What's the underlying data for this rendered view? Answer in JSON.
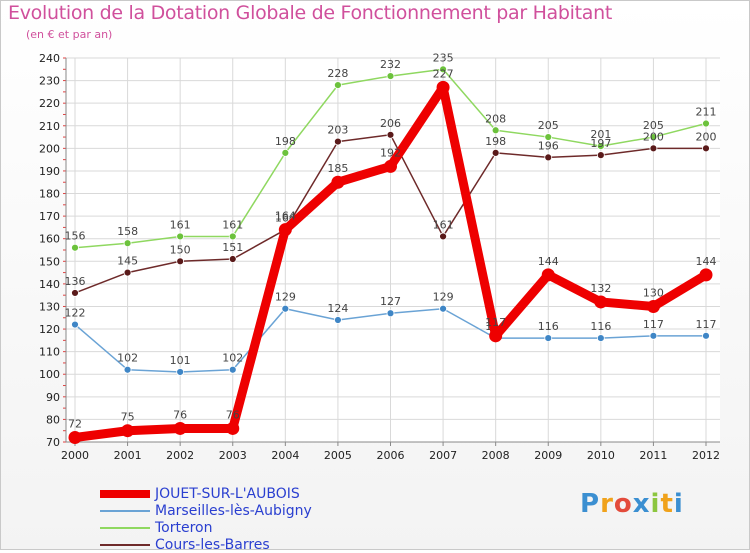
{
  "title": "Evolution de la Dotation Globale de Fonctionnement par Habitant",
  "subtitle": "(en € et par an)",
  "logo": {
    "text": "Proxiti",
    "letters": [
      {
        "ch": "P",
        "color": "#3b8fd1"
      },
      {
        "ch": "r",
        "color": "#f0a21b"
      },
      {
        "ch": "o",
        "color": "#e34b3b"
      },
      {
        "ch": "x",
        "color": "#3b8fd1"
      },
      {
        "ch": "i",
        "color": "#8cc63f"
      },
      {
        "ch": "t",
        "color": "#f0a21b"
      },
      {
        "ch": "i",
        "color": "#3b8fd1"
      }
    ]
  },
  "chart_data": {
    "type": "line",
    "x": [
      "2000",
      "2001",
      "2002",
      "2003",
      "2004",
      "2005",
      "2006",
      "2007",
      "2008",
      "2009",
      "2010",
      "2011",
      "2012"
    ],
    "ylim": [
      70,
      240
    ],
    "yticks": [
      70,
      80,
      90,
      100,
      110,
      120,
      130,
      140,
      150,
      160,
      170,
      180,
      190,
      200,
      210,
      220,
      230,
      240
    ],
    "grid": true,
    "legend_position": "bottom-left",
    "series": [
      {
        "name": "Torteron",
        "color": "#8fd860",
        "marker": "#6cc23c",
        "width": "thin",
        "values": [
          156,
          158,
          161,
          161,
          198,
          228,
          232,
          235,
          208,
          205,
          201,
          205,
          211
        ],
        "labels": [
          "156",
          "158",
          "161",
          "161",
          "198",
          "228",
          "232",
          "235",
          "208",
          "205",
          "201",
          "205",
          "211"
        ]
      },
      {
        "name": "Cours-les-Barres",
        "color": "#6e2a2a",
        "marker": "#5a1a1a",
        "width": "thin",
        "values": [
          136,
          145,
          150,
          151,
          164,
          203,
          206,
          161,
          198,
          196,
          197,
          200,
          200
        ],
        "labels": [
          "136",
          "145",
          "150",
          "151",
          "164",
          "203",
          "206",
          "161",
          "198",
          "196",
          "197",
          "200",
          "200"
        ]
      },
      {
        "name": "Marseilles-lès-Aubigny",
        "color": "#6aa3d5",
        "marker": "#3f86c6",
        "width": "thin",
        "values": [
          122,
          102,
          101,
          102,
          129,
          124,
          127,
          129,
          116,
          116,
          116,
          117,
          117
        ],
        "labels": [
          "122",
          "102",
          "101",
          "102",
          "129",
          "124",
          "127",
          "129",
          "116",
          "116",
          "116",
          "117",
          "117"
        ]
      },
      {
        "name": "JOUET-SUR-L'AUBOIS",
        "color": "#ee0000",
        "marker": "#ee0000",
        "width": "thick",
        "values": [
          72,
          75,
          76,
          76,
          164,
          185,
          192,
          227,
          117,
          144,
          132,
          130,
          144
        ],
        "labels": [
          "72",
          "75",
          "76",
          "76",
          "164",
          "185",
          "192",
          "227",
          "117",
          "144",
          "132",
          "130",
          "144"
        ]
      }
    ],
    "legend": [
      {
        "name": "JOUET-SUR-L'AUBOIS",
        "color": "#ee0000",
        "text_color": "#2a3fd0",
        "thick": true
      },
      {
        "name": "Marseilles-lès-Aubigny",
        "color": "#6aa3d5",
        "text_color": "#2a3fd0",
        "thick": false
      },
      {
        "name": "Torteron",
        "color": "#8fd860",
        "text_color": "#2a3fd0",
        "thick": false
      },
      {
        "name": "Cours-les-Barres",
        "color": "#6e2a2a",
        "text_color": "#2a3fd0",
        "thick": false
      }
    ]
  }
}
